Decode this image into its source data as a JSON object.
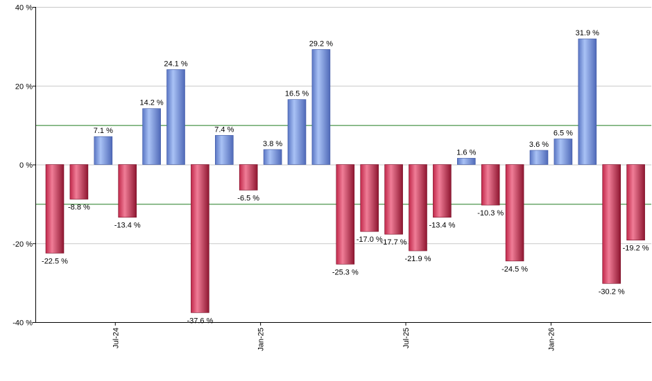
{
  "chart_data": {
    "type": "bar",
    "y_axis": {
      "min": -40,
      "max": 40,
      "ticks": [
        40,
        20,
        0,
        -20,
        -40
      ],
      "tick_labels": [
        "40 %",
        "20 %",
        "0 %",
        "-20 %",
        "-40 %"
      ]
    },
    "x_axis": {
      "tick_labels": [
        "Jul-24",
        "Jan-25",
        "Jul-25",
        "Jan-26"
      ],
      "tick_after_bar": [
        2,
        8,
        14,
        20
      ]
    },
    "reference_lines": [
      10,
      -10
    ],
    "grid": "horizontal",
    "values": [
      -22.5,
      -8.8,
      7.1,
      -13.4,
      14.2,
      24.1,
      -37.6,
      7.4,
      -6.5,
      3.8,
      16.5,
      29.2,
      -25.3,
      -17.0,
      -17.7,
      -21.9,
      -13.4,
      1.6,
      -10.3,
      -24.5,
      3.6,
      6.5,
      31.9,
      -30.2,
      -19.2
    ],
    "labels": [
      "-22.5 %",
      "-8.8 %",
      "7.1 %",
      "-13.4 %",
      "14.2 %",
      "24.1 %",
      "-37.6 %",
      "7.4 %",
      "-6.5 %",
      "3.8 %",
      "16.5 %",
      "29.2 %",
      "-25.3 %",
      "-17.0 %",
      "-17.7 %",
      "-21.9 %",
      "-13.4 %",
      "1.6 %",
      "-10.3 %",
      "-24.5 %",
      "3.6 %",
      "6.5 %",
      "31.9 %",
      "-30.2 %",
      "-19.2 %"
    ],
    "colors": {
      "positive": "#7f9ee6",
      "negative": "#d03050",
      "reference_line": "#1f7a1f",
      "grid": "#c8c8c8",
      "axis": "#000000"
    }
  }
}
